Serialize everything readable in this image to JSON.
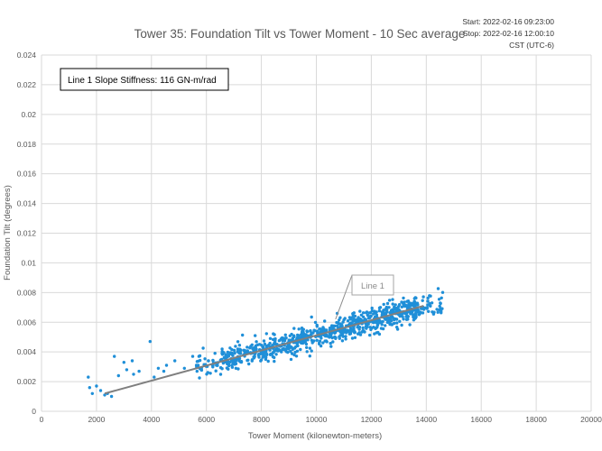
{
  "chart_data": {
    "type": "scatter",
    "title": "Tower 35: Foundation Tilt vs Tower Moment - 10 Sec average",
    "meta": {
      "start": "Start: 2022-02-16 09:23:00",
      "stop": "Stop: 2022-02-16 12:00:10",
      "timezone": "CST (UTC-6)"
    },
    "annotation": "Line 1 Slope Stiffness: 116 GN-m/rad",
    "xlabel": "Tower Moment (kilonewton-meters)",
    "ylabel": "Foundation Tilt (degrees)",
    "xlim": [
      0,
      20000
    ],
    "ylim": [
      0,
      0.024
    ],
    "xticks": [
      0,
      2000,
      4000,
      6000,
      8000,
      10000,
      12000,
      14000,
      16000,
      18000,
      20000
    ],
    "yticks": [
      "0",
      "0.002",
      "0.004",
      "0.006",
      "0.008",
      "0.01",
      "0.012",
      "0.014",
      "0.016",
      "0.018",
      "0.02",
      "0.022",
      "0.024"
    ],
    "grid": true,
    "point_color": "#1f8fd8",
    "line_color": "#7f7f7f",
    "fit_line": {
      "name": "Line 1",
      "x": [
        2300,
        13900
      ],
      "y": [
        0.0012,
        0.0071
      ]
    },
    "outliers": [
      [
        1700,
        0.0023
      ],
      [
        1750,
        0.0016
      ],
      [
        1850,
        0.0012
      ],
      [
        2000,
        0.0017
      ],
      [
        2150,
        0.0014
      ],
      [
        2300,
        0.0011
      ],
      [
        2400,
        0.0012
      ],
      [
        2550,
        0.001
      ],
      [
        2650,
        0.0037
      ],
      [
        2800,
        0.0024
      ],
      [
        3000,
        0.0033
      ],
      [
        3100,
        0.0028
      ],
      [
        3300,
        0.0034
      ],
      [
        3350,
        0.0025
      ],
      [
        3550,
        0.0027
      ],
      [
        3950,
        0.0047
      ],
      [
        4100,
        0.0023
      ],
      [
        4250,
        0.0029
      ],
      [
        4450,
        0.0027
      ],
      [
        4550,
        0.0031
      ],
      [
        4850,
        0.0034
      ],
      [
        5200,
        0.0029
      ],
      [
        5500,
        0.0037
      ],
      [
        5700,
        0.0031
      ]
    ],
    "series": [
      {
        "name": "",
        "x_range": [
          1700,
          14600
        ],
        "trend": {
          "intercept": 0.00015,
          "slope": 4.95e-07
        },
        "spread": 0.0005,
        "count": 900
      }
    ]
  }
}
